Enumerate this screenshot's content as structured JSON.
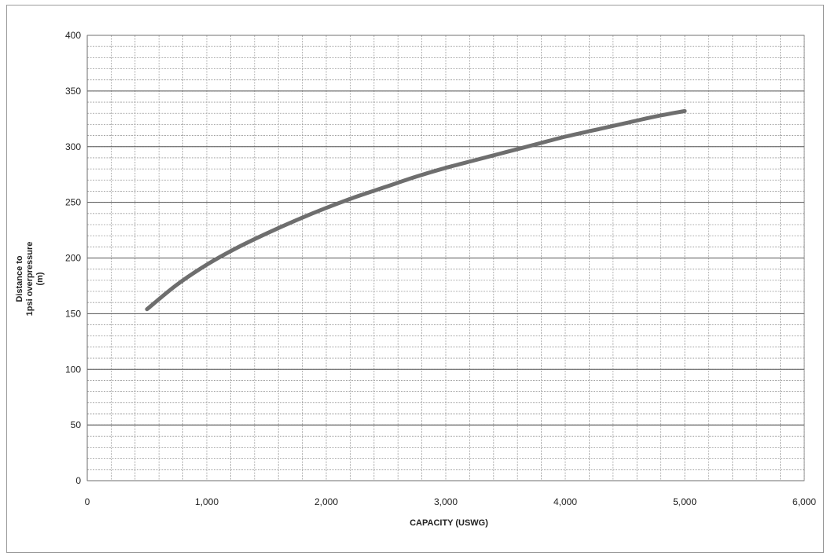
{
  "chart_data": {
    "type": "line",
    "title": "",
    "xlabel": "CAPACITY (USWG)",
    "ylabel_lines": [
      "Distance to",
      "1psi overpressure",
      "(m)"
    ],
    "xlim": [
      0,
      6000
    ],
    "ylim": [
      0,
      400
    ],
    "x_ticks": [
      0,
      1000,
      2000,
      3000,
      4000,
      5000,
      6000
    ],
    "x_tick_labels": [
      "0",
      "1,000",
      "2,000",
      "3,000",
      "4,000",
      "5,000",
      "6,000"
    ],
    "y_ticks": [
      0,
      50,
      100,
      150,
      200,
      250,
      300,
      350,
      400
    ],
    "y_tick_labels": [
      "0",
      "50",
      "100",
      "150",
      "200",
      "250",
      "300",
      "350",
      "400"
    ],
    "grid": true,
    "legend": "none",
    "series": [
      {
        "color": "#6e6e6e",
        "x": [
          500,
          750,
          1000,
          1250,
          1500,
          1750,
          2000,
          2250,
          2500,
          2750,
          3000,
          3250,
          3500,
          3750,
          4000,
          4250,
          4500,
          4750,
          5000
        ],
        "y": [
          154,
          176,
          194,
          209,
          222,
          234,
          245,
          255,
          264,
          273,
          281,
          288,
          295,
          302,
          309,
          315,
          321,
          327,
          332
        ]
      }
    ]
  }
}
